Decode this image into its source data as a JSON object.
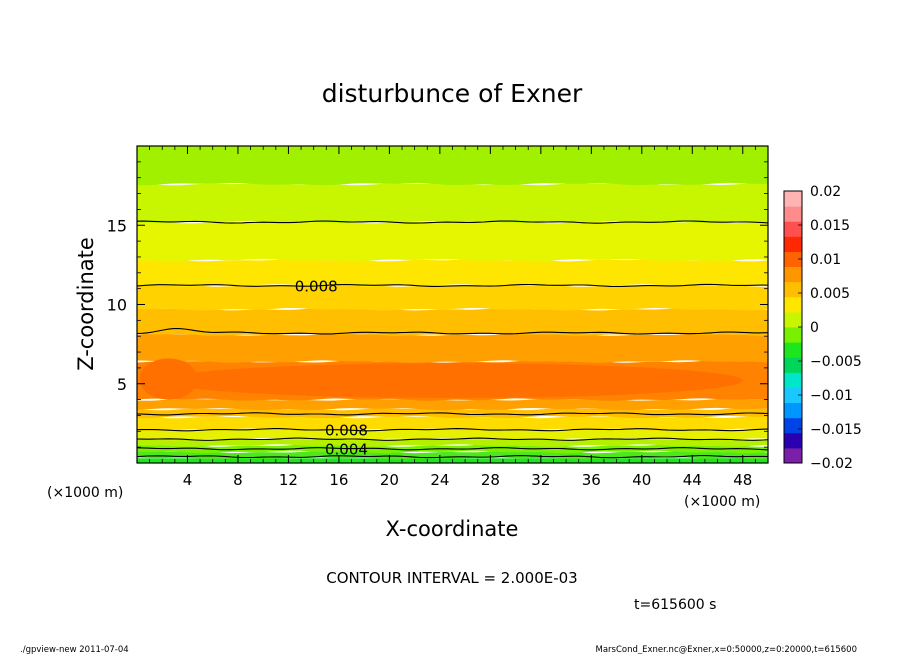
{
  "chart_data": {
    "type": "heatmap",
    "title": "disturbunce of Exner",
    "xlabel": "X-coordinate",
    "ylabel": "Z-coordinate",
    "x_unit_left": "(×1000 m)",
    "x_unit_right": "(×1000 m)",
    "xlim": [
      0,
      50
    ],
    "ylim": [
      0,
      20
    ],
    "x_ticks": [
      4,
      8,
      12,
      16,
      20,
      24,
      28,
      32,
      36,
      40,
      44,
      48
    ],
    "y_ticks": [
      5,
      10,
      15
    ],
    "contour_interval_text": "CONTOUR INTERVAL = 2.000E-03",
    "time_text": "t=615600 s",
    "footer_left": "./gpview-new  2011-07-04",
    "footer_right": "MarsCond_Exner.nc@Exner,x=0:50000,z=0:20000,t=615600",
    "colorbar": {
      "range": [
        -0.02,
        0.02
      ],
      "ticks": [
        0.02,
        0.015,
        0.01,
        0.005,
        0,
        -0.005,
        -0.01,
        -0.015,
        -0.02
      ],
      "tick_labels": [
        "0.02",
        "0.015",
        "0.01",
        "0.005",
        "0",
        "−0.005",
        "−0.01",
        "−0.015",
        "−0.02"
      ],
      "colors": [
        "#7a1fa8",
        "#2b00b0",
        "#0044e8",
        "#0096ff",
        "#19c8ff",
        "#00e6c8",
        "#00d65a",
        "#1ee61e",
        "#78f000",
        "#c8f500",
        "#ffe600",
        "#ffbe00",
        "#ff9600",
        "#ff6400",
        "#ff2800",
        "#ff5050",
        "#ff8c8c",
        "#ffb4b4"
      ]
    },
    "bands": [
      {
        "z0": 0.0,
        "z1": 0.3,
        "color": "#1ee61e"
      },
      {
        "z0": 0.3,
        "z1": 0.7,
        "color": "#50e61e"
      },
      {
        "z0": 0.7,
        "z1": 1.1,
        "color": "#78f000"
      },
      {
        "z0": 1.1,
        "z1": 1.5,
        "color": "#b4f000"
      },
      {
        "z0": 1.5,
        "z1": 2.1,
        "color": "#e6f000"
      },
      {
        "z0": 2.1,
        "z1": 2.9,
        "color": "#ffdc00"
      },
      {
        "z0": 2.9,
        "z1": 3.4,
        "color": "#ffbe00"
      },
      {
        "z0": 3.4,
        "z1": 4.0,
        "color": "#ffa000"
      },
      {
        "z0": 4.0,
        "z1": 6.4,
        "color": "#ff8200"
      },
      {
        "z0": 6.4,
        "z1": 8.1,
        "color": "#ffa000"
      },
      {
        "z0": 8.1,
        "z1": 9.7,
        "color": "#ffbe00"
      },
      {
        "z0": 9.7,
        "z1": 11.2,
        "color": "#ffd200"
      },
      {
        "z0": 11.2,
        "z1": 12.8,
        "color": "#ffe600"
      },
      {
        "z0": 12.8,
        "z1": 15.2,
        "color": "#e6f500"
      },
      {
        "z0": 15.2,
        "z1": 17.6,
        "color": "#c8f500"
      },
      {
        "z0": 17.6,
        "z1": 20.0,
        "color": "#a0f000"
      }
    ],
    "contours": [
      {
        "z": 0.4,
        "label": ""
      },
      {
        "z": 0.9,
        "label": "0.004"
      },
      {
        "z": 1.5,
        "label": ""
      },
      {
        "z": 2.1,
        "label": "0.008"
      },
      {
        "z": 3.1,
        "label": ""
      },
      {
        "z": 8.2,
        "label": ""
      },
      {
        "z": 11.2,
        "label": "0.008"
      },
      {
        "z": 15.2,
        "label": ""
      }
    ],
    "blobs": [
      {
        "x": 2.5,
        "z": 5.3,
        "rx": 2.3,
        "rz": 1.3
      },
      {
        "x": 25,
        "z": 5.2,
        "rx": 23,
        "rz": 1.1
      }
    ]
  }
}
